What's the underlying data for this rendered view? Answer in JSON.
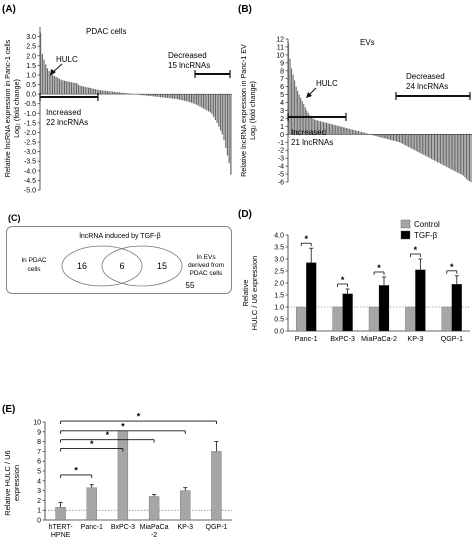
{
  "panels": {
    "A": {
      "label": "(A)",
      "title": "PDAC cells",
      "ylabel_line1": "Relative lncRNA expression in Panc-1 cells",
      "ylabel_line2": "Log₂ (fold change)",
      "hulc": "HULC",
      "increased_l1": "Increased",
      "increased_l2": "22 lncRNAs",
      "decreased_l1": "Decreased",
      "decreased_l2": "15 lncRNAs"
    },
    "B": {
      "label": "(B)",
      "title": "EVs",
      "ylabel_line1": "Relative lncRNA expression in Panc-1 EV",
      "ylabel_line2": "Log₂ (fold change)",
      "hulc": "HULC",
      "increased_l1": "Increased",
      "increased_l2": "21 lncRNAs",
      "decreased_l1": "Decreased",
      "decreased_l2": "24 lncRNAs"
    },
    "C": {
      "label": "(C)",
      "title": "lncRNA induced by TGF-β",
      "left_l1": "In PDAC",
      "left_l2": "cells",
      "right_l1": "In EVs",
      "right_l2": "derived from",
      "right_l3": "PDAC cells",
      "left_only": "16",
      "overlap": "6",
      "right_only": "15",
      "outside": "55"
    },
    "D": {
      "label": "(D)"
    },
    "E": {
      "label": "(E)"
    }
  },
  "chart_data": [
    {
      "panel": "A",
      "type": "bar",
      "ylabel": "Relative lncRNA expression in Panc-1 cells Log2 (fold change)",
      "ylim": [
        -5,
        3.5
      ],
      "yticks": [
        3,
        2.5,
        2,
        1.5,
        1,
        0.5,
        0,
        -0.5,
        -1,
        -1.5,
        -2,
        -2.5,
        -3,
        -3.5,
        -4,
        -4.5,
        -5
      ],
      "values": [
        3.2,
        2.1,
        1.8,
        1.55,
        1.35,
        1.2,
        1.1,
        1.0,
        0.95,
        0.9,
        0.85,
        0.8,
        0.75,
        0.72,
        0.7,
        0.68,
        0.66,
        0.64,
        0.62,
        0.6,
        0.59,
        0.58,
        0.5,
        0.45,
        0.42,
        0.4,
        0.38,
        0.36,
        0.34,
        0.32,
        0.3,
        0.28,
        0.26,
        0.24,
        0.22,
        0.2,
        0.19,
        0.18,
        0.17,
        0.16,
        0.15,
        0.14,
        0.13,
        0.12,
        0.11,
        0.1,
        0.09,
        0.08,
        0.07,
        0.06,
        0.05,
        0.04,
        0.03,
        0.02,
        0.01,
        -0.01,
        -0.02,
        -0.03,
        -0.04,
        -0.05,
        -0.06,
        -0.07,
        -0.08,
        -0.09,
        -0.1,
        -0.11,
        -0.12,
        -0.13,
        -0.14,
        -0.15,
        -0.16,
        -0.17,
        -0.18,
        -0.19,
        -0.2,
        -0.21,
        -0.22,
        -0.23,
        -0.24,
        -0.25,
        -0.27,
        -0.29,
        -0.31,
        -0.33,
        -0.35,
        -0.37,
        -0.39,
        -0.42,
        -0.45,
        -0.48,
        -0.52,
        -0.55,
        -0.6,
        -0.65,
        -0.7,
        -0.75,
        -0.8,
        -0.85,
        -0.9,
        -0.95,
        -1.05,
        -1.2,
        -1.35,
        -1.5,
        -1.7,
        -1.9,
        -2.1,
        -2.4,
        -2.8,
        -3.2,
        -3.6,
        -4.2
      ]
    },
    {
      "panel": "B",
      "type": "bar",
      "ylabel": "Relative lncRNA expression in Panc-1 EV Log2 (fold change)",
      "ylim": [
        -6,
        12
      ],
      "yticks": [
        12,
        11,
        10,
        9,
        8,
        7,
        6,
        5,
        4,
        3,
        2,
        1,
        0,
        -1,
        -2,
        -3,
        -4,
        -5,
        -6
      ],
      "values": [
        11.5,
        9.5,
        8.3,
        7.5,
        6.8,
        6.0,
        5.5,
        5.0,
        4.6,
        4.2,
        3.8,
        3.4,
        3.0,
        2.7,
        2.4,
        2.2,
        2.0,
        1.9,
        1.8,
        1.75,
        1.7,
        1.65,
        1.6,
        1.55,
        1.5,
        1.45,
        1.4,
        1.35,
        1.3,
        1.25,
        1.2,
        1.15,
        1.1,
        1.05,
        1.0,
        0.95,
        0.9,
        0.85,
        0.8,
        0.75,
        0.7,
        0.65,
        0.6,
        0.55,
        0.5,
        0.45,
        0.4,
        0.35,
        0.3,
        0.25,
        0.2,
        0.15,
        0.1,
        0.05,
        -0.05,
        -0.1,
        -0.15,
        -0.2,
        -0.25,
        -0.3,
        -0.35,
        -0.4,
        -0.45,
        -0.5,
        -0.55,
        -0.6,
        -0.65,
        -0.7,
        -0.75,
        -0.8,
        -0.85,
        -0.9,
        -0.95,
        -1.0,
        -1.1,
        -1.2,
        -1.3,
        -1.4,
        -1.5,
        -1.6,
        -1.7,
        -1.8,
        -1.9,
        -2.0,
        -2.1,
        -2.2,
        -2.3,
        -2.4,
        -2.5,
        -2.6,
        -2.7,
        -2.8,
        -2.9,
        -3.0,
        -3.1,
        -3.2,
        -3.3,
        -3.4,
        -3.5,
        -3.6,
        -3.7,
        -3.8,
        -3.9,
        -4.0,
        -4.1,
        -4.2,
        -4.3,
        -4.4,
        -4.5,
        -4.6,
        -4.7,
        -4.8,
        -4.9,
        -5.0,
        -5.1,
        -5.2,
        -5.4,
        -5.6,
        -5.8,
        -5.9,
        -6.0
      ]
    },
    {
      "panel": "D",
      "type": "bar",
      "ylabel": "Relative HULC / U6 expression",
      "ylim": [
        0,
        4.0
      ],
      "yticks": [
        0.0,
        0.5,
        1.0,
        1.5,
        2.0,
        2.5,
        3.0,
        3.5,
        4.0
      ],
      "reference_line": 1.0,
      "categories": [
        "Panc-1",
        "BxPC-3",
        "MiaPaCa-2",
        "KP-3",
        "QGP-1"
      ],
      "series": [
        {
          "name": "Control",
          "color": "#a6a6a6",
          "values": [
            1.0,
            1.0,
            1.0,
            1.0,
            1.0
          ],
          "errors": [
            0,
            0,
            0,
            0,
            0
          ]
        },
        {
          "name": "TGF-β",
          "color": "#000000",
          "values": [
            2.85,
            1.55,
            1.9,
            2.55,
            1.95
          ],
          "errors": [
            0.6,
            0.2,
            0.35,
            0.45,
            0.35
          ]
        }
      ],
      "significance": [
        "*",
        "*",
        "*",
        "*",
        "*"
      ],
      "legend_position": "top-right"
    },
    {
      "panel": "E",
      "type": "bar",
      "ylabel": "Relative HULC / U6 expression",
      "ylim": [
        0,
        10
      ],
      "yticks": [
        0,
        1,
        2,
        3,
        4,
        5,
        6,
        7,
        8,
        9,
        10
      ],
      "reference_line": 1.0,
      "categories": [
        "hTERT-HPNE",
        "Panc-1",
        "BxPC-3",
        "MiaPaCa-2",
        "KP-3",
        "QGP-1"
      ],
      "series": [
        {
          "color": "#a6a6a6",
          "values": [
            1.3,
            3.3,
            9.0,
            2.4,
            3.0,
            7.0
          ],
          "errors": [
            0.5,
            0.3,
            0.0,
            0.2,
            0.3,
            1.0
          ]
        }
      ],
      "significance_pairs": [
        {
          "from": "hTERT-HPNE",
          "to": "Panc-1",
          "label": "*"
        },
        {
          "from": "hTERT-HPNE",
          "to": "BxPC-3",
          "label": "*"
        },
        {
          "from": "hTERT-HPNE",
          "to": "MiaPaCa-2",
          "label": "*"
        },
        {
          "from": "hTERT-HPNE",
          "to": "KP-3",
          "label": "*"
        },
        {
          "from": "hTERT-HPNE",
          "to": "QGP-1",
          "label": "*"
        }
      ]
    }
  ]
}
